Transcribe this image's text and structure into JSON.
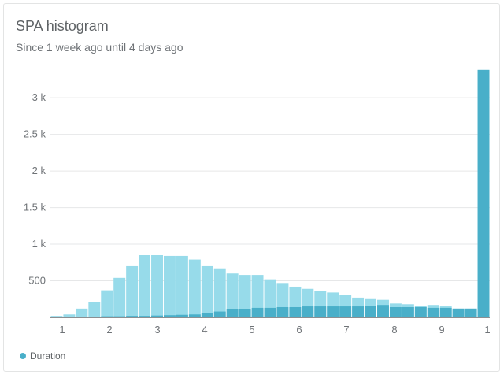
{
  "widget": {
    "title": "SPA histogram",
    "subtitle": "Since 1 week ago until 4 days ago"
  },
  "colors": {
    "light": "#97dbea",
    "dark": "#49afc9",
    "grid": "#e6e7e8",
    "axis": "#8b8f92"
  },
  "chart_data": {
    "type": "bar",
    "title": "SPA histogram",
    "subtitle": "Since 1 week ago until 4 days ago",
    "xlabel": "",
    "ylabel": "",
    "ylim": [
      0,
      3400
    ],
    "grid": true,
    "legend_position": "bottom-left",
    "x_tick_labels": [
      "1",
      "2",
      "3",
      "4",
      "5",
      "6",
      "7",
      "8",
      "9",
      "1"
    ],
    "y_tick_labels": [
      "500",
      "1 k",
      "1.5 k",
      "2 k",
      "2.5 k",
      "3 k"
    ],
    "y_tick_values": [
      500,
      1000,
      1500,
      2000,
      2500,
      3000
    ],
    "series": [
      {
        "name": "Duration",
        "total": [
          20,
          40,
          120,
          210,
          370,
          540,
          700,
          850,
          850,
          840,
          840,
          790,
          700,
          670,
          600,
          580,
          580,
          520,
          470,
          420,
          390,
          360,
          340,
          310,
          270,
          250,
          240,
          190,
          180,
          160,
          170,
          150,
          120,
          120,
          3380
        ],
        "highlight": [
          5,
          5,
          10,
          10,
          15,
          15,
          20,
          20,
          25,
          30,
          35,
          40,
          60,
          80,
          110,
          110,
          130,
          130,
          140,
          140,
          150,
          150,
          150,
          150,
          150,
          160,
          170,
          140,
          140,
          140,
          130,
          130,
          120,
          120,
          3380
        ]
      }
    ]
  }
}
